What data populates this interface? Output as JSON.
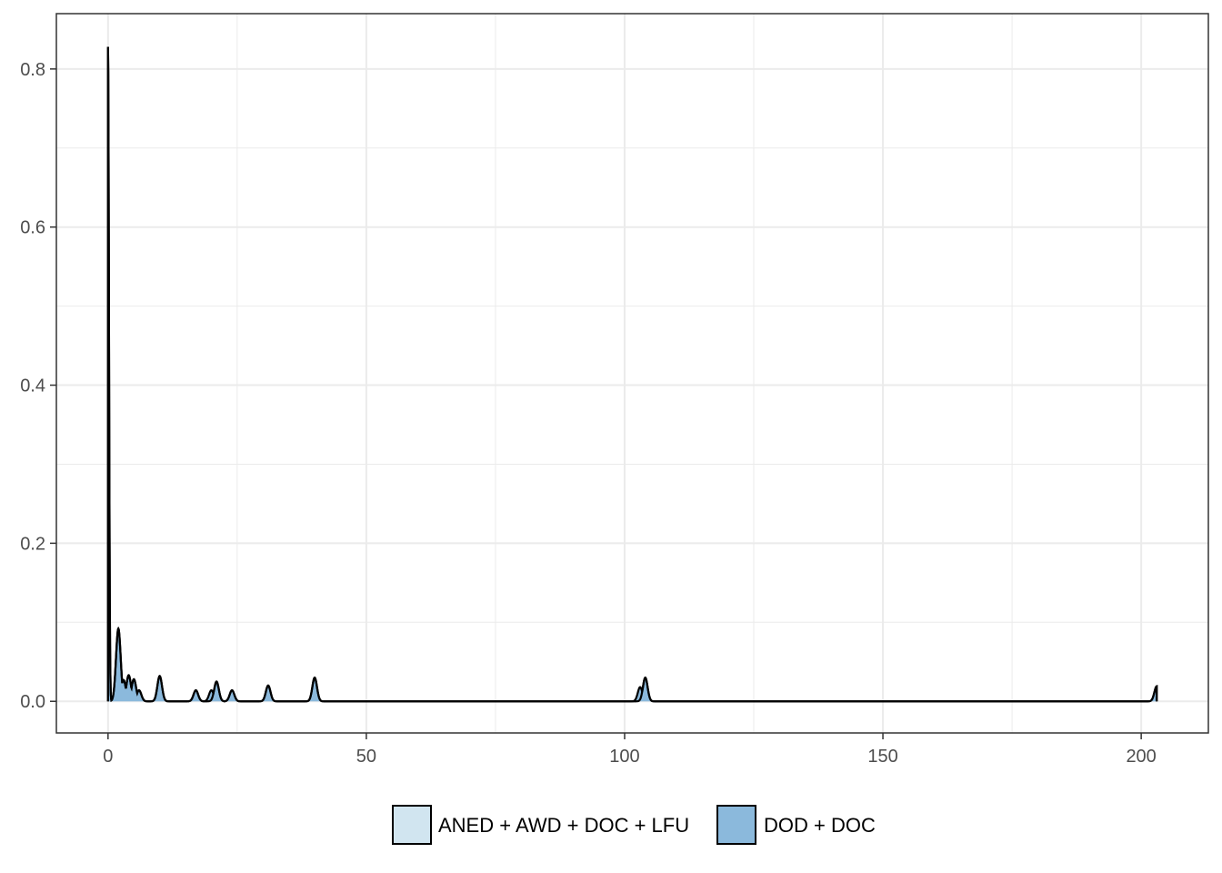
{
  "chart_data": {
    "type": "area",
    "title": "",
    "xlabel": "",
    "ylabel": "",
    "xlim": [
      -10,
      213
    ],
    "ylim": [
      -0.04,
      0.87
    ],
    "x_ticks": [
      0,
      50,
      100,
      150,
      200
    ],
    "x_tick_labels": [
      "0",
      "50",
      "100",
      "150",
      "200"
    ],
    "y_ticks": [
      0.0,
      0.2,
      0.4,
      0.6,
      0.8
    ],
    "y_tick_labels": [
      "0.0",
      "0.2",
      "0.4",
      "0.6",
      "0.8"
    ],
    "grid": true,
    "legend_position": "bottom",
    "series": [
      {
        "name": "ANED + AWD + DOC + LFU",
        "color": "#d1e5f0",
        "points": [
          [
            0,
            0.828
          ],
          [
            2,
            0.092
          ],
          [
            3,
            0.027
          ],
          [
            4,
            0.033
          ],
          [
            5,
            0.028
          ],
          [
            6,
            0.014
          ],
          [
            10,
            0.032
          ],
          [
            17,
            0.014
          ],
          [
            21,
            0.025
          ],
          [
            24,
            0.014
          ],
          [
            31,
            0.02
          ],
          [
            40,
            0.03
          ],
          [
            104,
            0.03
          ],
          [
            203,
            0.019
          ]
        ]
      },
      {
        "name": "DOD + DOC",
        "color": "#8bb9dc",
        "points": [
          [
            0,
            0.828
          ],
          [
            2,
            0.092
          ],
          [
            3,
            0.027
          ],
          [
            4,
            0.033
          ],
          [
            5,
            0.028
          ],
          [
            6,
            0.014
          ],
          [
            10,
            0.032
          ],
          [
            17,
            0.014
          ],
          [
            20,
            0.014
          ],
          [
            21,
            0.025
          ],
          [
            24,
            0.014
          ],
          [
            31,
            0.02
          ],
          [
            40,
            0.03
          ],
          [
            103,
            0.018
          ],
          [
            104,
            0.03
          ],
          [
            203,
            0.019
          ]
        ]
      }
    ]
  }
}
